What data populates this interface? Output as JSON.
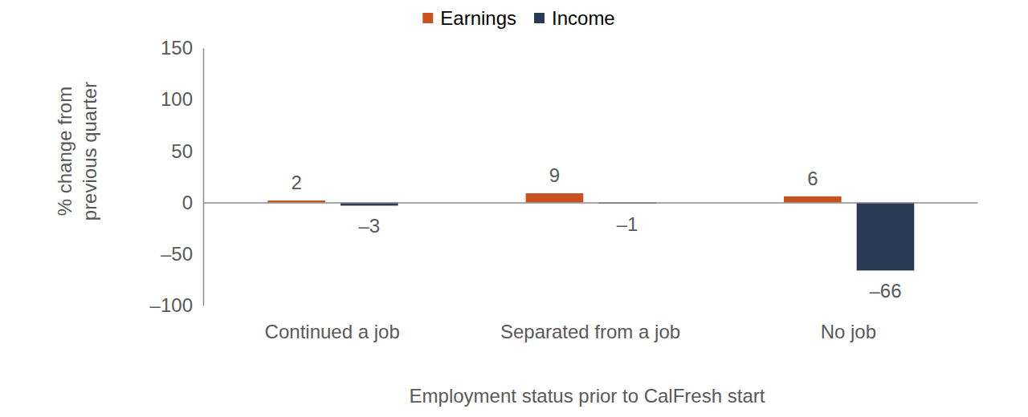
{
  "chart_data": {
    "type": "bar",
    "x_label": "Employment status prior to CalFresh start",
    "y_label": "% change from previous quarter",
    "categories": [
      "Continued a job",
      "Separated from a job",
      "No job"
    ],
    "series": [
      {
        "name": "Earnings",
        "color": "#c9511f",
        "values": [
          2,
          9,
          6
        ]
      },
      {
        "name": "Income",
        "color": "#293a55",
        "values": [
          -3,
          -1,
          -66
        ],
        "value_labels": [
          "–3",
          "–1",
          "–66"
        ]
      }
    ],
    "ylim": [
      -100,
      150
    ],
    "yticks": [
      {
        "value": -100,
        "label": "–100"
      },
      {
        "value": -50,
        "label": "–50"
      },
      0,
      50,
      100,
      150
    ],
    "grid": false,
    "legend": "top",
    "data_labels": true
  }
}
